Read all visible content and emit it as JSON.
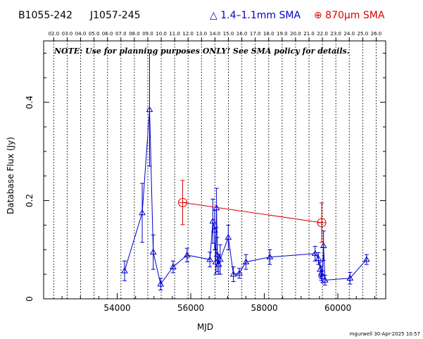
{
  "header": {
    "source_b1950": "B1055-242",
    "source_j2000": "J1057-245",
    "legend_blue": "△ 1.4–1.1mm SMA",
    "legend_red": "⊕ 870μm SMA"
  },
  "note": "NOTE: Use for planning purposes ONLY!  See SMA policy for details.",
  "credit": "mgurwell 30-Apr-2025 10:57",
  "colors": {
    "blue": "#0000cc",
    "red": "#dd0000"
  },
  "chart_data": {
    "type": "scatter",
    "xlabel": "MJD",
    "ylabel": "Database Flux (Jy)",
    "xlim": [
      52000,
      61300
    ],
    "ylim": [
      0,
      0.525
    ],
    "x_ticks": [
      54000,
      56000,
      58000,
      60000
    ],
    "x_tick_labels": [
      "54000",
      "56000",
      "58000",
      "60000"
    ],
    "y_ticks": [
      0,
      0.2,
      0.4
    ],
    "y_tick_labels": [
      "0",
      "0.2",
      "0.4"
    ],
    "top_axis_year_labels": [
      "02.0",
      "03.0",
      "04.0",
      "05.0",
      "06.0",
      "07.0",
      "08.0",
      "09.0",
      "10.0",
      "11.0",
      "12.0",
      "13.0",
      "14.0",
      "15.0",
      "16.0",
      "17.0",
      "18.0",
      "19.0",
      "20.0",
      "21.0",
      "22.0",
      "23.0",
      "24.0",
      "25.0",
      "26.0"
    ],
    "year_grid_mjd": [
      52275,
      52640,
      53005,
      53371,
      53736,
      54101,
      54466,
      54832,
      55197,
      55562,
      55927,
      56293,
      56658,
      57023,
      57388,
      57754,
      58119,
      58484,
      58849,
      59215,
      59580,
      59945,
      60310,
      60676,
      61041
    ],
    "series": [
      {
        "legend": "1.4-1.1mm SMA",
        "marker": "triangle",
        "color": "#0000cc",
        "points": [
          {
            "x": 54200,
            "y": 0.057,
            "err": 0.02
          },
          {
            "x": 54680,
            "y": 0.175,
            "err": 0.06
          },
          {
            "x": 54880,
            "y": 0.385,
            "err": 0.115
          },
          {
            "x": 54980,
            "y": 0.095,
            "err": 0.035
          },
          {
            "x": 55180,
            "y": 0.03,
            "err": 0.012
          },
          {
            "x": 55520,
            "y": 0.065,
            "err": 0.012
          },
          {
            "x": 55900,
            "y": 0.089,
            "err": 0.014
          },
          {
            "x": 56520,
            "y": 0.08,
            "err": 0.015
          },
          {
            "x": 56600,
            "y": 0.158,
            "err": 0.045
          },
          {
            "x": 56650,
            "y": 0.14,
            "err": 0.04
          },
          {
            "x": 56680,
            "y": 0.075,
            "err": 0.025
          },
          {
            "x": 56700,
            "y": 0.185,
            "err": 0.04
          },
          {
            "x": 56720,
            "y": 0.09,
            "err": 0.035
          },
          {
            "x": 56760,
            "y": 0.07,
            "err": 0.02
          },
          {
            "x": 56800,
            "y": 0.08,
            "err": 0.03
          },
          {
            "x": 57020,
            "y": 0.125,
            "err": 0.025
          },
          {
            "x": 57160,
            "y": 0.05,
            "err": 0.015
          },
          {
            "x": 57320,
            "y": 0.052,
            "err": 0.01
          },
          {
            "x": 57500,
            "y": 0.075,
            "err": 0.015
          },
          {
            "x": 58150,
            "y": 0.085,
            "err": 0.015
          },
          {
            "x": 59380,
            "y": 0.092,
            "err": 0.015
          },
          {
            "x": 59470,
            "y": 0.082,
            "err": 0.012
          },
          {
            "x": 59520,
            "y": 0.06,
            "err": 0.015
          },
          {
            "x": 59550,
            "y": 0.052,
            "err": 0.015
          },
          {
            "x": 59580,
            "y": 0.045,
            "err": 0.012
          },
          {
            "x": 59610,
            "y": 0.108,
            "err": 0.03
          },
          {
            "x": 59650,
            "y": 0.038,
            "err": 0.01
          },
          {
            "x": 60330,
            "y": 0.042,
            "err": 0.012
          },
          {
            "x": 60780,
            "y": 0.08,
            "err": 0.01
          }
        ]
      },
      {
        "legend": "870um SMA",
        "marker": "circle-plus",
        "color": "#dd0000",
        "points": [
          {
            "x": 55780,
            "y": 0.196,
            "err": 0.045
          },
          {
            "x": 59560,
            "y": 0.155,
            "err": 0.04
          }
        ]
      }
    ]
  }
}
